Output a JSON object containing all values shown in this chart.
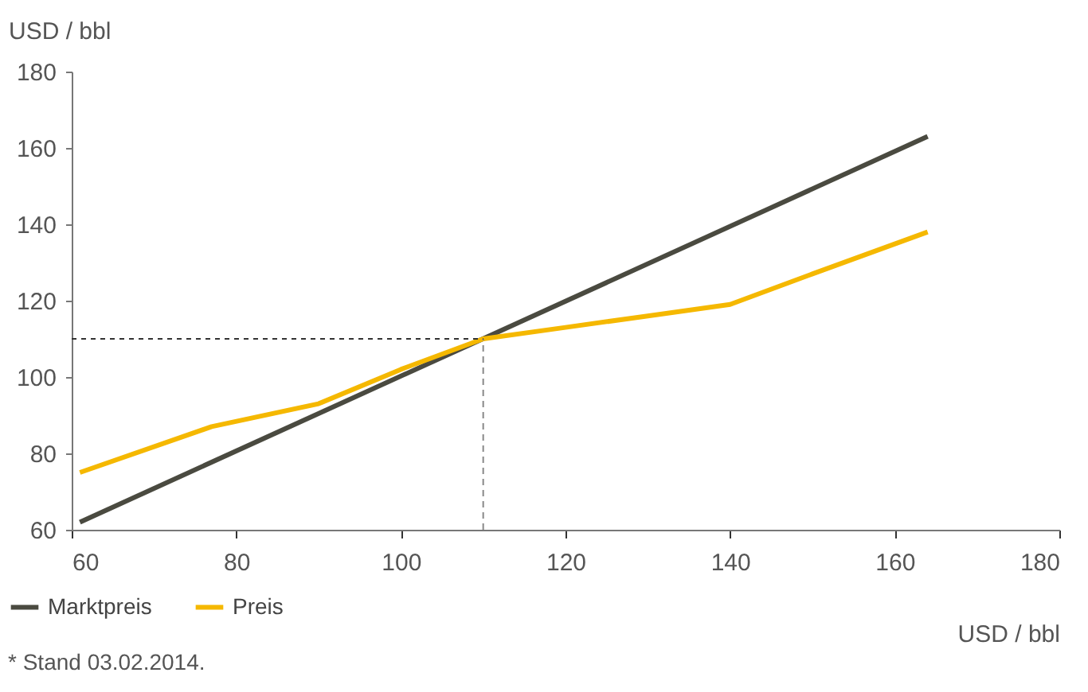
{
  "chart_data": {
    "type": "line",
    "xlabel": "USD / bbl",
    "ylabel": "USD / bbl",
    "xlim": [
      60,
      180
    ],
    "xticks": [
      60,
      80,
      100,
      120,
      140,
      160,
      180
    ],
    "ylim": [
      60,
      180
    ],
    "yticks": [
      60,
      80,
      100,
      120,
      140,
      160,
      180
    ],
    "series": [
      {
        "name": "Marktpreis",
        "color": "#4a4a40",
        "x": [
          61,
          164
        ],
        "values": [
          62,
          163
        ]
      },
      {
        "name": "Preis",
        "color": "#f5b800",
        "x": [
          61,
          77,
          90,
          100,
          110,
          120,
          130,
          140,
          150,
          164
        ],
        "values": [
          75,
          87,
          93,
          102,
          110,
          113,
          116,
          119,
          127,
          138
        ]
      }
    ],
    "ref_lines": [
      {
        "axis": "x",
        "value": 110,
        "line_style": "dashed",
        "color": "#888888"
      },
      {
        "axis": "y",
        "value": 110,
        "line_style": "dotted",
        "color": "#333333"
      }
    ],
    "legend": "bottom left",
    "grid": false,
    "marker": "none",
    "line_style": "solid",
    "annotations": [
      "* Stand 03.02.2014."
    ]
  }
}
